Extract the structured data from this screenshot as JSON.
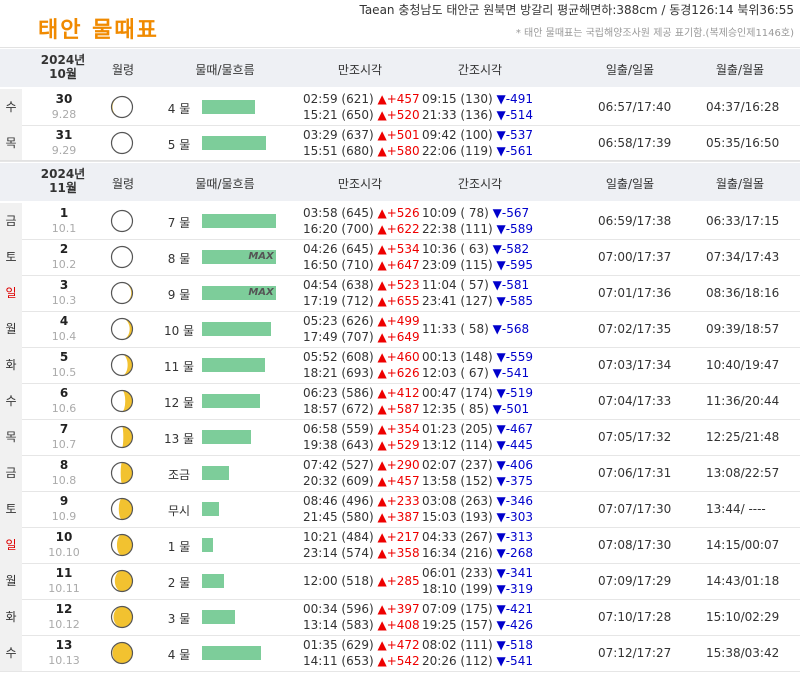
{
  "header": {
    "title": "태안 물때표",
    "location": "Taean 충청남도 태안군 원북면 방갈리 평균해면하:388cm / 동경126:14 북위36:55",
    "note": "* 태안 물때표는 국립해양조사원 제공 표기함.(복제승인제1146호)"
  },
  "columns": {
    "moon": "월령",
    "mul": "물때/물흐름",
    "high": "만조시각",
    "low": "간조시각",
    "sun": "일출/일몰",
    "moonrise": "월출/월몰"
  },
  "months": [
    {
      "year": "2024년",
      "month": "10월",
      "rows": [
        {
          "dow": "수",
          "sun": false,
          "day": "30",
          "lunar": "9.28",
          "phase": 0.93,
          "mul": "4 물",
          "flow": 0.7,
          "max": false,
          "high1": "02:59 (621)",
          "hd1": "▲+457",
          "high2": "15:21 (650)",
          "hd2": "▲+520",
          "low1": "09:15 (130)",
          "ld1": "▼-491",
          "low2": "21:33 (136)",
          "ld2": "▼-514",
          "sunrs": "06:57/17:40",
          "moonrs": "04:37/16:28"
        },
        {
          "dow": "목",
          "sun": false,
          "day": "31",
          "lunar": "9.29",
          "phase": 0.96,
          "mul": "5 물",
          "flow": 0.84,
          "max": false,
          "high1": "03:29 (637)",
          "hd1": "▲+501",
          "high2": "15:51 (680)",
          "hd2": "▲+580",
          "low1": "09:42 (100)",
          "ld1": "▼-537",
          "low2": "22:06 (119)",
          "ld2": "▼-561",
          "sunrs": "06:58/17:39",
          "moonrs": "05:35/16:50"
        }
      ]
    },
    {
      "year": "2024년",
      "month": "11월",
      "rows": [
        {
          "dow": "금",
          "sun": false,
          "day": "1",
          "lunar": "10.1",
          "phase": 0.0,
          "mul": "7 물",
          "flow": 0.97,
          "max": false,
          "high1": "03:58 (645)",
          "hd1": "▲+526",
          "high2": "16:20 (700)",
          "hd2": "▲+622",
          "low1": "10:09 ( 78)",
          "ld1": "▼-567",
          "low2": "22:38 (111)",
          "ld2": "▼-589",
          "sunrs": "06:59/17:38",
          "moonrs": "06:33/17:15"
        },
        {
          "dow": "토",
          "sun": false,
          "day": "2",
          "lunar": "10.2",
          "phase": 0.04,
          "mul": "8 물",
          "flow": 0.97,
          "max": true,
          "maxlabel": "MAX",
          "high1": "04:26 (645)",
          "hd1": "▲+534",
          "high2": "16:50 (710)",
          "hd2": "▲+647",
          "low1": "10:36 ( 63)",
          "ld1": "▼-582",
          "low2": "23:09 (115)",
          "ld2": "▼-595",
          "sunrs": "07:00/17:37",
          "moonrs": "07:34/17:43"
        },
        {
          "dow": "일",
          "sun": true,
          "day": "3",
          "lunar": "10.3",
          "phase": 0.08,
          "mul": "9 물",
          "flow": 0.97,
          "max": true,
          "maxlabel": "MAX",
          "high1": "04:54 (638)",
          "hd1": "▲+523",
          "high2": "17:19 (712)",
          "hd2": "▲+655",
          "low1": "11:04 ( 57)",
          "ld1": "▼-581",
          "low2": "23:41 (127)",
          "ld2": "▼-585",
          "sunrs": "07:01/17:36",
          "moonrs": "08:36/18:16"
        },
        {
          "dow": "월",
          "sun": false,
          "day": "4",
          "lunar": "10.4",
          "phase": 0.12,
          "mul": "10 물",
          "flow": 0.91,
          "max": false,
          "high1": "05:23 (626)",
          "hd1": "▲+499",
          "high2": "17:49 (707)",
          "hd2": "▲+649",
          "low1": "11:33 ( 58)",
          "ld1": "▼-568",
          "low2": "",
          "ld2": "",
          "sunrs": "07:02/17:35",
          "moonrs": "09:39/18:57"
        },
        {
          "dow": "화",
          "sun": false,
          "day": "5",
          "lunar": "10.5",
          "phase": 0.16,
          "mul": "11 물",
          "flow": 0.83,
          "max": false,
          "high1": "05:52 (608)",
          "hd1": "▲+460",
          "high2": "18:21 (693)",
          "hd2": "▲+626",
          "low1": "00:13 (148)",
          "ld1": "▼-559",
          "low2": "12:03 ( 67)",
          "ld2": "▼-541",
          "sunrs": "07:03/17:34",
          "moonrs": "10:40/19:47"
        },
        {
          "dow": "수",
          "sun": false,
          "day": "6",
          "lunar": "10.6",
          "phase": 0.2,
          "mul": "12 물",
          "flow": 0.76,
          "max": false,
          "high1": "06:23 (586)",
          "hd1": "▲+412",
          "high2": "18:57 (672)",
          "hd2": "▲+587",
          "low1": "00:47 (174)",
          "ld1": "▼-519",
          "low2": "12:35 ( 85)",
          "ld2": "▼-501",
          "sunrs": "07:04/17:33",
          "moonrs": "11:36/20:44"
        },
        {
          "dow": "목",
          "sun": false,
          "day": "7",
          "lunar": "10.7",
          "phase": 0.23,
          "mul": "13 물",
          "flow": 0.64,
          "max": false,
          "high1": "06:58 (559)",
          "hd1": "▲+354",
          "high2": "19:38 (643)",
          "hd2": "▲+529",
          "low1": "01:23 (205)",
          "ld1": "▼-467",
          "low2": "13:12 (114)",
          "ld2": "▼-445",
          "sunrs": "07:05/17:32",
          "moonrs": "12:25/21:48"
        },
        {
          "dow": "금",
          "sun": false,
          "day": "8",
          "lunar": "10.8",
          "phase": 0.27,
          "mul": "조금",
          "flow": 0.36,
          "max": false,
          "high1": "07:42 (527)",
          "hd1": "▲+290",
          "high2": "20:32 (609)",
          "hd2": "▲+457",
          "low1": "02:07 (237)",
          "ld1": "▼-406",
          "low2": "13:58 (152)",
          "ld2": "▼-375",
          "sunrs": "07:06/17:31",
          "moonrs": "13:08/22:57"
        },
        {
          "dow": "토",
          "sun": false,
          "day": "9",
          "lunar": "10.9",
          "phase": 0.3,
          "mul": "무시",
          "flow": 0.22,
          "max": false,
          "high1": "08:46 (496)",
          "hd1": "▲+233",
          "high2": "21:45 (580)",
          "hd2": "▲+387",
          "low1": "03:08 (263)",
          "ld1": "▼-346",
          "low2": "15:03 (193)",
          "ld2": "▼-303",
          "sunrs": "07:07/17:30",
          "moonrs": "13:44/ ----"
        },
        {
          "dow": "일",
          "sun": true,
          "day": "10",
          "lunar": "10.10",
          "phase": 0.33,
          "mul": "1 물",
          "flow": 0.15,
          "max": false,
          "high1": "10:21 (484)",
          "hd1": "▲+217",
          "high2": "23:14 (574)",
          "hd2": "▲+358",
          "low1": "04:33 (267)",
          "ld1": "▼-313",
          "low2": "16:34 (216)",
          "ld2": "▼-268",
          "sunrs": "07:08/17:30",
          "moonrs": "14:15/00:07"
        },
        {
          "dow": "월",
          "sun": false,
          "day": "11",
          "lunar": "10.11",
          "phase": 0.37,
          "mul": "2 물",
          "flow": 0.29,
          "max": false,
          "high1": "12:00 (518)",
          "hd1": "▲+285",
          "high2": "",
          "hd2": "",
          "low1": "06:01 (233)",
          "ld1": "▼-341",
          "low2": "18:10 (199)",
          "ld2": "▼-319",
          "sunrs": "07:09/17:29",
          "moonrs": "14:43/01:18"
        },
        {
          "dow": "화",
          "sun": false,
          "day": "12",
          "lunar": "10.12",
          "phase": 0.4,
          "mul": "3 물",
          "flow": 0.43,
          "max": false,
          "high1": "00:34 (596)",
          "hd1": "▲+397",
          "high2": "13:14 (583)",
          "hd2": "▲+408",
          "low1": "07:09 (175)",
          "ld1": "▼-421",
          "low2": "19:25 (157)",
          "ld2": "▼-426",
          "sunrs": "07:10/17:28",
          "moonrs": "15:10/02:29"
        },
        {
          "dow": "수",
          "sun": false,
          "day": "13",
          "lunar": "10.13",
          "phase": 0.43,
          "mul": "4 물",
          "flow": 0.78,
          "max": false,
          "high1": "01:35 (629)",
          "hd1": "▲+472",
          "high2": "14:11 (653)",
          "hd2": "▲+542",
          "low1": "08:02 (111)",
          "ld1": "▼-518",
          "low2": "20:26 (112)",
          "ld2": "▼-541",
          "sunrs": "07:12/17:27",
          "moonrs": "15:38/03:42"
        }
      ]
    }
  ]
}
